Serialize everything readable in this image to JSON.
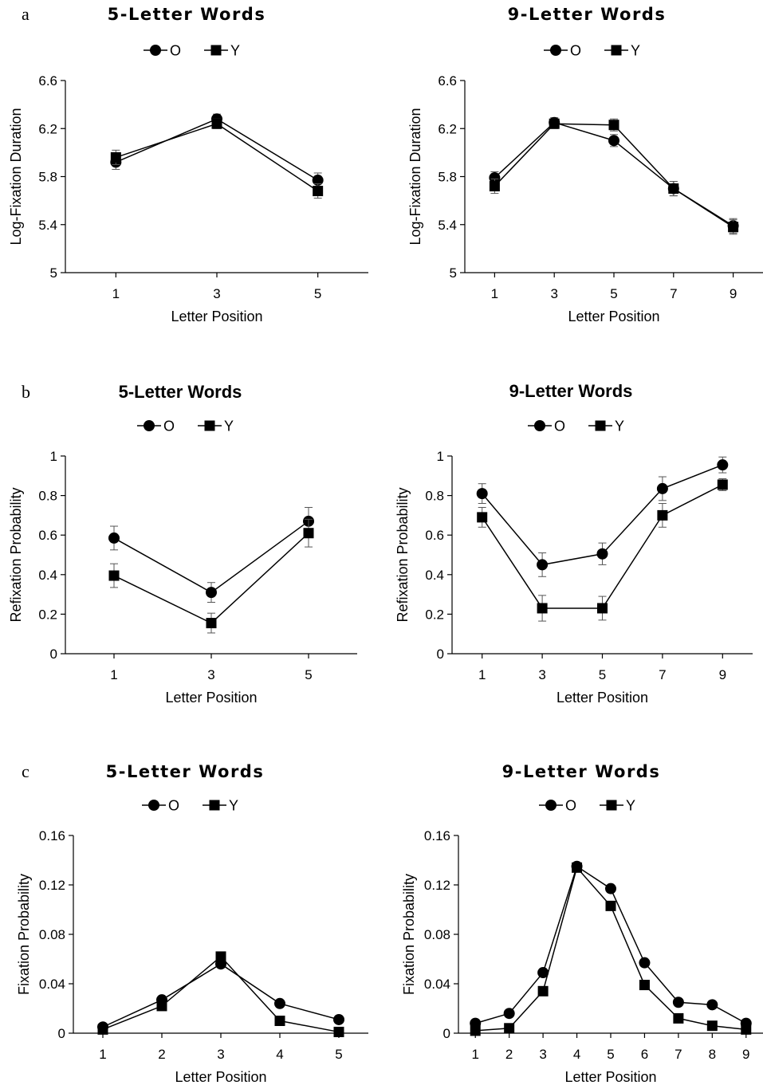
{
  "figure": {
    "panel_labels": [
      "a",
      "b",
      "c"
    ]
  },
  "chart_data": [
    {
      "type": "line",
      "panel": "a",
      "title": "5-Letter Words",
      "xlabel": "Letter Position",
      "ylabel": "Log-Fixation Duration",
      "x": [
        1,
        3,
        5
      ],
      "xticks": [
        "1",
        "3",
        "5"
      ],
      "xlim": [
        0,
        6
      ],
      "ylim": [
        5,
        6.6
      ],
      "yticks": [
        "5",
        "5.4",
        "5.8",
        "6.2",
        "6.6"
      ],
      "grid": false,
      "legend": "top-center",
      "series": [
        {
          "name": "O",
          "marker": "circle",
          "values": [
            5.92,
            6.28,
            5.77
          ],
          "errors": [
            0.06,
            0.04,
            0.06
          ]
        },
        {
          "name": "Y",
          "marker": "square",
          "values": [
            5.96,
            6.24,
            5.68
          ],
          "errors": [
            0.06,
            0.04,
            0.06
          ]
        }
      ]
    },
    {
      "type": "line",
      "panel": "a",
      "title": "9-Letter Words",
      "xlabel": "Letter Position",
      "ylabel": "Log-Fixation Duration",
      "x": [
        1,
        3,
        5,
        7,
        9
      ],
      "xticks": [
        "1",
        "3",
        "5",
        "7",
        "9"
      ],
      "xlim": [
        0,
        10
      ],
      "ylim": [
        5,
        6.6
      ],
      "yticks": [
        "5",
        "5.4",
        "5.8",
        "6.2",
        "6.6"
      ],
      "grid": false,
      "legend": "top-center",
      "series": [
        {
          "name": "O",
          "marker": "circle",
          "values": [
            5.79,
            6.25,
            6.1,
            5.7,
            5.39
          ],
          "errors": [
            0.05,
            0.04,
            0.05,
            0.06,
            0.06
          ]
        },
        {
          "name": "Y",
          "marker": "square",
          "values": [
            5.72,
            6.24,
            6.23,
            5.7,
            5.38
          ],
          "errors": [
            0.06,
            0.04,
            0.05,
            0.06,
            0.06
          ]
        }
      ]
    },
    {
      "type": "line",
      "panel": "b",
      "title": "5-Letter Words",
      "xlabel": "Letter Position",
      "ylabel": "Refixation Probability",
      "x": [
        1,
        3,
        5
      ],
      "xticks": [
        "1",
        "3",
        "5"
      ],
      "xlim": [
        0,
        6
      ],
      "ylim": [
        0,
        1
      ],
      "yticks": [
        "0",
        "0.2",
        "0.4",
        "0.6",
        "0.8",
        "1"
      ],
      "grid": false,
      "legend": "top-center",
      "series": [
        {
          "name": "O",
          "marker": "circle",
          "values": [
            0.585,
            0.31,
            0.67
          ],
          "errors": [
            0.06,
            0.05,
            0.07
          ]
        },
        {
          "name": "Y",
          "marker": "square",
          "values": [
            0.395,
            0.155,
            0.61
          ],
          "errors": [
            0.06,
            0.05,
            0.07
          ]
        }
      ]
    },
    {
      "type": "line",
      "panel": "b",
      "title": "9-Letter Words",
      "xlabel": "Letter Position",
      "ylabel": "Refixation Probability",
      "x": [
        1,
        3,
        5,
        7,
        9
      ],
      "xticks": [
        "1",
        "3",
        "5",
        "7",
        "9"
      ],
      "xlim": [
        0,
        10
      ],
      "ylim": [
        0,
        1
      ],
      "yticks": [
        "0",
        "0.2",
        "0.4",
        "0.6",
        "0.8",
        "1"
      ],
      "grid": false,
      "legend": "top-center",
      "series": [
        {
          "name": "O",
          "marker": "circle",
          "values": [
            0.81,
            0.45,
            0.505,
            0.835,
            0.955
          ],
          "errors": [
            0.05,
            0.06,
            0.055,
            0.06,
            0.04
          ]
        },
        {
          "name": "Y",
          "marker": "square",
          "values": [
            0.69,
            0.23,
            0.23,
            0.7,
            0.855
          ],
          "errors": [
            0.05,
            0.065,
            0.06,
            0.06,
            0.03
          ]
        }
      ]
    },
    {
      "type": "line",
      "panel": "c",
      "title": "5-Letter Words",
      "xlabel": "Letter Position",
      "ylabel": "Fixation Probability",
      "x": [
        1,
        2,
        3,
        4,
        5
      ],
      "xticks": [
        "1",
        "2",
        "3",
        "4",
        "5"
      ],
      "xlim": [
        0.5,
        5.5
      ],
      "ylim": [
        0,
        0.16
      ],
      "yticks": [
        "0",
        "0.04",
        "0.08",
        "0.12",
        "0.16"
      ],
      "grid": false,
      "legend": "top-center",
      "series": [
        {
          "name": "O",
          "marker": "circle",
          "values": [
            0.005,
            0.027,
            0.056,
            0.024,
            0.011
          ]
        },
        {
          "name": "Y",
          "marker": "square",
          "values": [
            0.003,
            0.022,
            0.062,
            0.01,
            0.001
          ]
        }
      ]
    },
    {
      "type": "line",
      "panel": "c",
      "title": "9-Letter Words",
      "xlabel": "Letter Position",
      "ylabel": "Fixation Probability",
      "x": [
        1,
        2,
        3,
        4,
        5,
        6,
        7,
        8,
        9
      ],
      "xticks": [
        "1",
        "2",
        "3",
        "4",
        "5",
        "6",
        "7",
        "8",
        "9"
      ],
      "xlim": [
        0.5,
        9.5
      ],
      "ylim": [
        0,
        0.16
      ],
      "yticks": [
        "0",
        "0.04",
        "0.08",
        "0.12",
        "0.16"
      ],
      "grid": false,
      "legend": "top-center",
      "series": [
        {
          "name": "O",
          "marker": "circle",
          "values": [
            0.008,
            0.016,
            0.049,
            0.135,
            0.117,
            0.057,
            0.025,
            0.023,
            0.008
          ]
        },
        {
          "name": "Y",
          "marker": "square",
          "values": [
            0.002,
            0.004,
            0.034,
            0.134,
            0.103,
            0.039,
            0.012,
            0.006,
            0.003
          ]
        }
      ]
    }
  ]
}
